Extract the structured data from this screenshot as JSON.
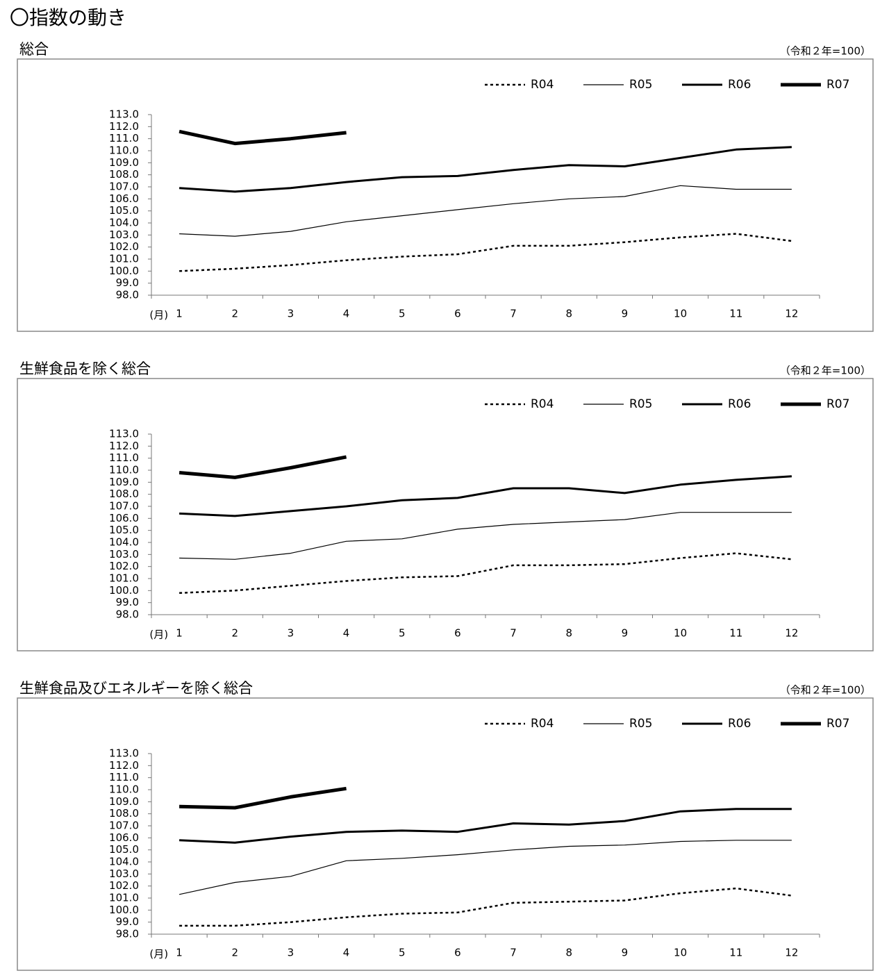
{
  "title": "〇指数の動き",
  "chart_data": [
    {
      "type": "line",
      "title": "総合",
      "note": "（令和２年=100）",
      "x_label": "(月)",
      "categories": [
        "1",
        "2",
        "3",
        "4",
        "5",
        "6",
        "7",
        "8",
        "9",
        "10",
        "11",
        "12"
      ],
      "ylim": [
        98,
        113
      ],
      "yticks": [
        {
          "value": 98,
          "label": "98.0"
        },
        {
          "value": 99,
          "label": "99.0"
        },
        {
          "value": 100,
          "label": "100.0"
        },
        {
          "value": 101,
          "label": "101.0"
        },
        {
          "value": 102,
          "label": "102.0"
        },
        {
          "value": 103,
          "label": "103.0"
        },
        {
          "value": 104,
          "label": "104.0"
        },
        {
          "value": 105,
          "label": "105.0"
        },
        {
          "value": 106,
          "label": "106.0"
        },
        {
          "value": 107,
          "label": "107.0"
        },
        {
          "value": 108,
          "label": "108.0"
        },
        {
          "value": 109,
          "label": "109.0"
        },
        {
          "value": 110,
          "label": "110.0"
        },
        {
          "value": 111,
          "label": "111.0"
        },
        {
          "value": 112,
          "label": "112.0"
        },
        {
          "value": 113,
          "label": "113.0"
        }
      ],
      "grid": false,
      "legend": "top-right",
      "series": [
        {
          "name": "R04",
          "color": "#000000",
          "width": 2.5,
          "dash": true,
          "values": [
            100.0,
            100.2,
            100.5,
            100.9,
            101.2,
            101.4,
            102.1,
            102.1,
            102.4,
            102.8,
            103.1,
            102.5
          ]
        },
        {
          "name": "R05",
          "color": "#000000",
          "width": 1.2,
          "dash": false,
          "values": [
            103.1,
            102.9,
            103.3,
            104.1,
            104.6,
            105.1,
            105.6,
            106.0,
            106.2,
            107.1,
            106.8,
            106.8
          ]
        },
        {
          "name": "R06",
          "color": "#000000",
          "width": 3,
          "dash": false,
          "values": [
            106.9,
            106.6,
            106.9,
            107.4,
            107.8,
            107.9,
            108.4,
            108.8,
            108.7,
            109.4,
            110.1,
            110.3
          ]
        },
        {
          "name": "R07",
          "color": "#000000",
          "width": 5,
          "dash": false,
          "values": [
            111.6,
            110.6,
            111.0,
            111.5,
            null,
            null,
            null,
            null,
            null,
            null,
            null,
            null
          ]
        }
      ]
    },
    {
      "type": "line",
      "title": "生鮮食品を除く総合",
      "note": "（令和２年=100）",
      "x_label": "(月)",
      "categories": [
        "1",
        "2",
        "3",
        "4",
        "5",
        "6",
        "7",
        "8",
        "9",
        "10",
        "11",
        "12"
      ],
      "ylim": [
        98,
        113
      ],
      "yticks": [
        {
          "value": 98,
          "label": "98.0"
        },
        {
          "value": 99,
          "label": "99.0"
        },
        {
          "value": 100,
          "label": "100.0"
        },
        {
          "value": 101,
          "label": "101.0"
        },
        {
          "value": 102,
          "label": "102.0"
        },
        {
          "value": 103,
          "label": "103.0"
        },
        {
          "value": 104,
          "label": "104.0"
        },
        {
          "value": 105,
          "label": "105.0"
        },
        {
          "value": 106,
          "label": "106.0"
        },
        {
          "value": 107,
          "label": "107.0"
        },
        {
          "value": 108,
          "label": "108.0"
        },
        {
          "value": 109,
          "label": "109.0"
        },
        {
          "value": 110,
          "label": "110.0"
        },
        {
          "value": 111,
          "label": "111.0"
        },
        {
          "value": 112,
          "label": "112.0"
        },
        {
          "value": 113,
          "label": "113.0"
        }
      ],
      "grid": false,
      "legend": "top-right",
      "series": [
        {
          "name": "R04",
          "color": "#000000",
          "width": 2.5,
          "dash": true,
          "values": [
            99.8,
            100.0,
            100.4,
            100.8,
            101.1,
            101.2,
            102.1,
            102.1,
            102.2,
            102.7,
            103.1,
            102.6
          ]
        },
        {
          "name": "R05",
          "color": "#000000",
          "width": 1.2,
          "dash": false,
          "values": [
            102.7,
            102.6,
            103.1,
            104.1,
            104.3,
            105.1,
            105.5,
            105.7,
            105.9,
            106.5,
            106.5,
            106.5
          ]
        },
        {
          "name": "R06",
          "color": "#000000",
          "width": 3,
          "dash": false,
          "values": [
            106.4,
            106.2,
            106.6,
            107.0,
            107.5,
            107.7,
            108.5,
            108.5,
            108.1,
            108.8,
            109.2,
            109.5
          ]
        },
        {
          "name": "R07",
          "color": "#000000",
          "width": 5,
          "dash": false,
          "values": [
            109.8,
            109.4,
            110.2,
            111.1,
            null,
            null,
            null,
            null,
            null,
            null,
            null,
            null
          ]
        }
      ]
    },
    {
      "type": "line",
      "title": "生鮮食品及びエネルギーを除く総合",
      "note": "（令和２年=100）",
      "x_label": "(月)",
      "categories": [
        "1",
        "2",
        "3",
        "4",
        "5",
        "6",
        "7",
        "8",
        "9",
        "10",
        "11",
        "12"
      ],
      "ylim": [
        98,
        113
      ],
      "yticks": [
        {
          "value": 98,
          "label": "98.0"
        },
        {
          "value": 99,
          "label": "99.0"
        },
        {
          "value": 100,
          "label": "100.0"
        },
        {
          "value": 101,
          "label": "101.0"
        },
        {
          "value": 102,
          "label": "102.0"
        },
        {
          "value": 103,
          "label": "103.0"
        },
        {
          "value": 104,
          "label": "104.0"
        },
        {
          "value": 105,
          "label": "105.0"
        },
        {
          "value": 106,
          "label": "106.0"
        },
        {
          "value": 107,
          "label": "107.0"
        },
        {
          "value": 108,
          "label": "108.0"
        },
        {
          "value": 109,
          "label": "109.0"
        },
        {
          "value": 110,
          "label": "110.0"
        },
        {
          "value": 111,
          "label": "111.0"
        },
        {
          "value": 112,
          "label": "112.0"
        },
        {
          "value": 113,
          "label": "113.0"
        }
      ],
      "grid": false,
      "legend": "top-right",
      "series": [
        {
          "name": "R04",
          "color": "#000000",
          "width": 2.5,
          "dash": true,
          "values": [
            98.7,
            98.7,
            99.0,
            99.4,
            99.7,
            99.8,
            100.6,
            100.7,
            100.8,
            101.4,
            101.8,
            101.2
          ]
        },
        {
          "name": "R05",
          "color": "#000000",
          "width": 1.2,
          "dash": false,
          "values": [
            101.3,
            102.3,
            102.8,
            104.1,
            104.3,
            104.6,
            105.0,
            105.3,
            105.4,
            105.7,
            105.8,
            105.8
          ]
        },
        {
          "name": "R06",
          "color": "#000000",
          "width": 3,
          "dash": false,
          "values": [
            105.8,
            105.6,
            106.1,
            106.5,
            106.6,
            106.5,
            107.2,
            107.1,
            107.4,
            108.2,
            108.4,
            108.4
          ]
        },
        {
          "name": "R07",
          "color": "#000000",
          "width": 5,
          "dash": false,
          "values": [
            108.6,
            108.5,
            109.4,
            110.1,
            null,
            null,
            null,
            null,
            null,
            null,
            null,
            null
          ]
        }
      ]
    }
  ]
}
